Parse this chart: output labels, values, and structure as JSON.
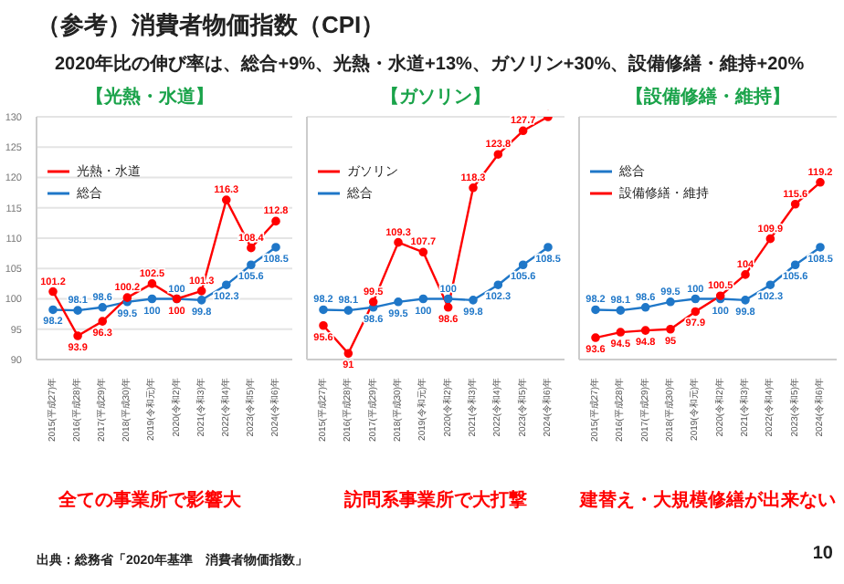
{
  "chart_data": [
    {
      "type": "line",
      "title": "【光熱・水道】",
      "categories": [
        "2015(平成27)年",
        "2016(平成28)年",
        "2017(平成29)年",
        "2018(平成30)年",
        "2019(令和元)年",
        "2020(令和2)年",
        "2021(令和3)年",
        "2022(令和4)年",
        "2023(令和5)年",
        "2024(令和6)年"
      ],
      "series": [
        {
          "name": "総合",
          "color": "#1f77c8",
          "values": [
            98.2,
            98.1,
            98.6,
            99.5,
            100,
            100,
            99.8,
            102.3,
            105.6,
            108.5
          ]
        },
        {
          "name": "光熱・水道",
          "color": "#ff0000",
          "values": [
            101.2,
            93.9,
            96.3,
            100.2,
            102.5,
            100,
            101.3,
            116.3,
            108.4,
            112.8
          ]
        }
      ],
      "ylim": [
        90,
        130
      ],
      "yticks": [
        90,
        95,
        100,
        105,
        110,
        115,
        120,
        125,
        130
      ],
      "grid": "y",
      "legend": "top left",
      "marker": "circle",
      "data_labels": true,
      "annotations": [
        "全ての事業所で影響大",
        "（参考）消費者物価指数（CPI）",
        "2020年比の伸び率は、総合+9%、光熱・水道+13%、ガソリン+30%、設備修繕・維持+20%"
      ]
    },
    {
      "type": "line",
      "title": "【ガソリン】",
      "categories": [
        "2015(平成27)年",
        "2016(平成28)年",
        "2017(平成29)年",
        "2018(平成30)年",
        "2019(令和元)年",
        "2020(令和2)年",
        "2021(令和3)年",
        "2022(令和4)年",
        "2023(令和5)年",
        "2024(令和6)年"
      ],
      "series": [
        {
          "name": "総合",
          "color": "#1f77c8",
          "values": [
            98.2,
            98.1,
            98.6,
            99.5,
            100,
            100,
            99.8,
            102.3,
            105.6,
            108.5
          ]
        },
        {
          "name": "ガソリン",
          "color": "#ff0000",
          "values": [
            95.6,
            91.0,
            99.5,
            109.3,
            107.7,
            98.6,
            118.3,
            123.8,
            127.7,
            130.0
          ]
        }
      ],
      "ylim": [
        90,
        130
      ],
      "yticks": [
        90,
        95,
        100,
        105,
        110,
        115,
        120,
        125,
        130
      ],
      "grid": "y",
      "legend": "top left",
      "marker": "circle",
      "data_labels": true,
      "tick_labels": "x",
      "annotations": [
        "訪問系事業所で大打撃"
      ]
    },
    {
      "type": "line",
      "title": "【設備修繕・維持】",
      "categories": [
        "2015(平成27)年",
        "2016(平成28)年",
        "2017(平成29)年",
        "2018(平成30)年",
        "2019(令和元)年",
        "2020(令和2)年",
        "2021(令和3)年",
        "2022(令和4)年",
        "2023(令和5)年",
        "2024(令和6)年"
      ],
      "series": [
        {
          "name": "総合",
          "color": "#1f77c8",
          "values": [
            98.2,
            98.1,
            98.6,
            99.5,
            100,
            100,
            99.8,
            102.3,
            105.6,
            108.5
          ]
        },
        {
          "name": "設備修繕・維持",
          "color": "#ff0000",
          "values": [
            93.6,
            94.5,
            94.8,
            95,
            97.9,
            100.5,
            104,
            109.9,
            115.6,
            119.2
          ]
        }
      ],
      "ylim": [
        90,
        130
      ],
      "yticks": [
        90,
        95,
        100,
        105,
        110,
        115,
        120,
        125,
        130
      ],
      "grid": "y",
      "legend": "top left",
      "marker": "circle",
      "data_labels": true,
      "tick_labels": "x",
      "annotations": [
        "建替え・大規模修繕が出来ない",
        "出典：総務省「2020年基準　消費者物価指数」",
        "10"
      ]
    }
  ]
}
